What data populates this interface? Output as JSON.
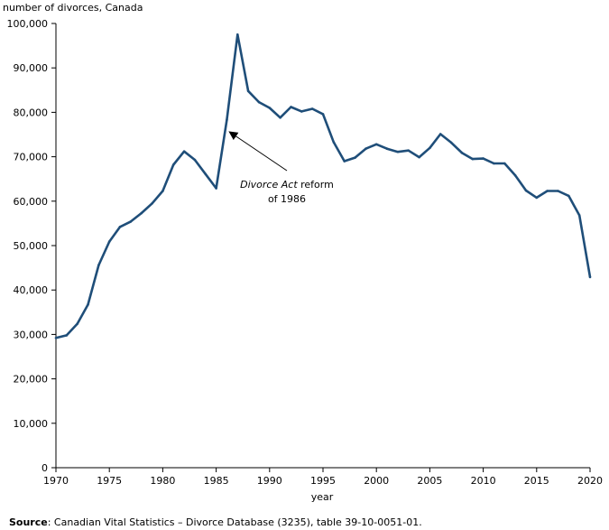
{
  "chart_data": {
    "type": "line",
    "ylabel": "number of divorces, Canada",
    "xlabel": "year",
    "xlim": [
      1970,
      2020
    ],
    "ylim": [
      0,
      100000
    ],
    "x_ticks": [
      1970,
      1975,
      1980,
      1985,
      1990,
      1995,
      2000,
      2005,
      2010,
      2015,
      2020
    ],
    "y_ticks": [
      0,
      10000,
      20000,
      30000,
      40000,
      50000,
      60000,
      70000,
      80000,
      90000,
      100000
    ],
    "x_tick_labels": [
      "1970",
      "1975",
      "1980",
      "1985",
      "1990",
      "1995",
      "2000",
      "2005",
      "2010",
      "2015",
      "2020"
    ],
    "y_tick_labels": [
      "0",
      "10,000",
      "20,000",
      "30,000",
      "40,000",
      "50,000",
      "60,000",
      "70,000",
      "80,000",
      "90,000",
      "100,000"
    ],
    "grid": false,
    "line_color": "#1f4e79",
    "series": [
      {
        "x": [
          1970,
          1971,
          1972,
          1973,
          1974,
          1975,
          1976,
          1977,
          1978,
          1979,
          1980,
          1981,
          1982,
          1983,
          1984,
          1985,
          1986,
          1987,
          1988,
          1989,
          1990,
          1991,
          1992,
          1993,
          1994,
          1995,
          1996,
          1997,
          1998,
          1999,
          2000,
          2001,
          2002,
          2003,
          2004,
          2005,
          2006,
          2007,
          2008,
          2009,
          2010,
          2011,
          2012,
          2013,
          2014,
          2015,
          2016,
          2017,
          2018,
          2019,
          2020
        ],
        "values": [
          29200,
          29800,
          32400,
          36700,
          45600,
          50900,
          54200,
          55400,
          57300,
          59500,
          62300,
          68200,
          71200,
          69300,
          66100,
          62900,
          78300,
          97500,
          84800,
          82300,
          81000,
          78800,
          81200,
          80200,
          80800,
          79600,
          73300,
          69000,
          69800,
          71800,
          72800,
          71800,
          71100,
          71400,
          69900,
          72000,
          75100,
          73200,
          70900,
          69500,
          69600,
          68500,
          68500,
          65800,
          62400,
          60800,
          62300,
          62300,
          61200,
          56800,
          42900
        ]
      }
    ],
    "annotation": {
      "text_italic": "Divorce Act",
      "text_rest": " reform",
      "text_line2": "of 1986",
      "arrow_target": {
        "x": 1986.3,
        "y": 75500
      }
    }
  },
  "source": {
    "label": "Source",
    "text": ": Canadian Vital Statistics – Divorce Database (3235), table 39-10-0051-01."
  }
}
